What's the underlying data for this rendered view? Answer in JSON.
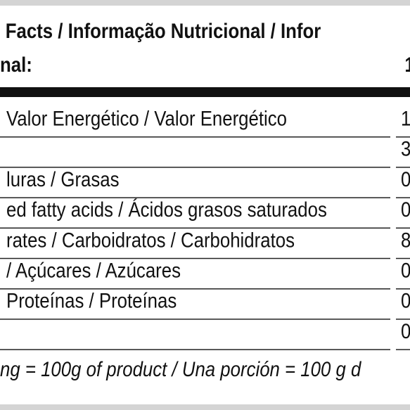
{
  "header": {
    "title": "Facts / Informação Nutricional / Infor",
    "serving": "nal:",
    "serving_value": "1"
  },
  "table": {
    "rows": [
      {
        "label": "Valor Energético / Valor Energético",
        "value": "1"
      },
      {
        "value": "3"
      },
      {
        "label": "luras / Grasas",
        "value": "0"
      },
      {
        "label": "ed fatty acids / Ácidos grasos saturados",
        "value": "0"
      },
      {
        "label": "rates / Carboidratos / Carbohidratos",
        "value": "8"
      },
      {
        "label": "/ Açúcares / Azúcares",
        "value": "0"
      },
      {
        "label": "Proteínas / Proteínas",
        "value": "0"
      },
      {
        "value": "0"
      }
    ]
  },
  "footer": {
    "note": "ng = 100g of product / Una porción = 100 g d"
  }
}
